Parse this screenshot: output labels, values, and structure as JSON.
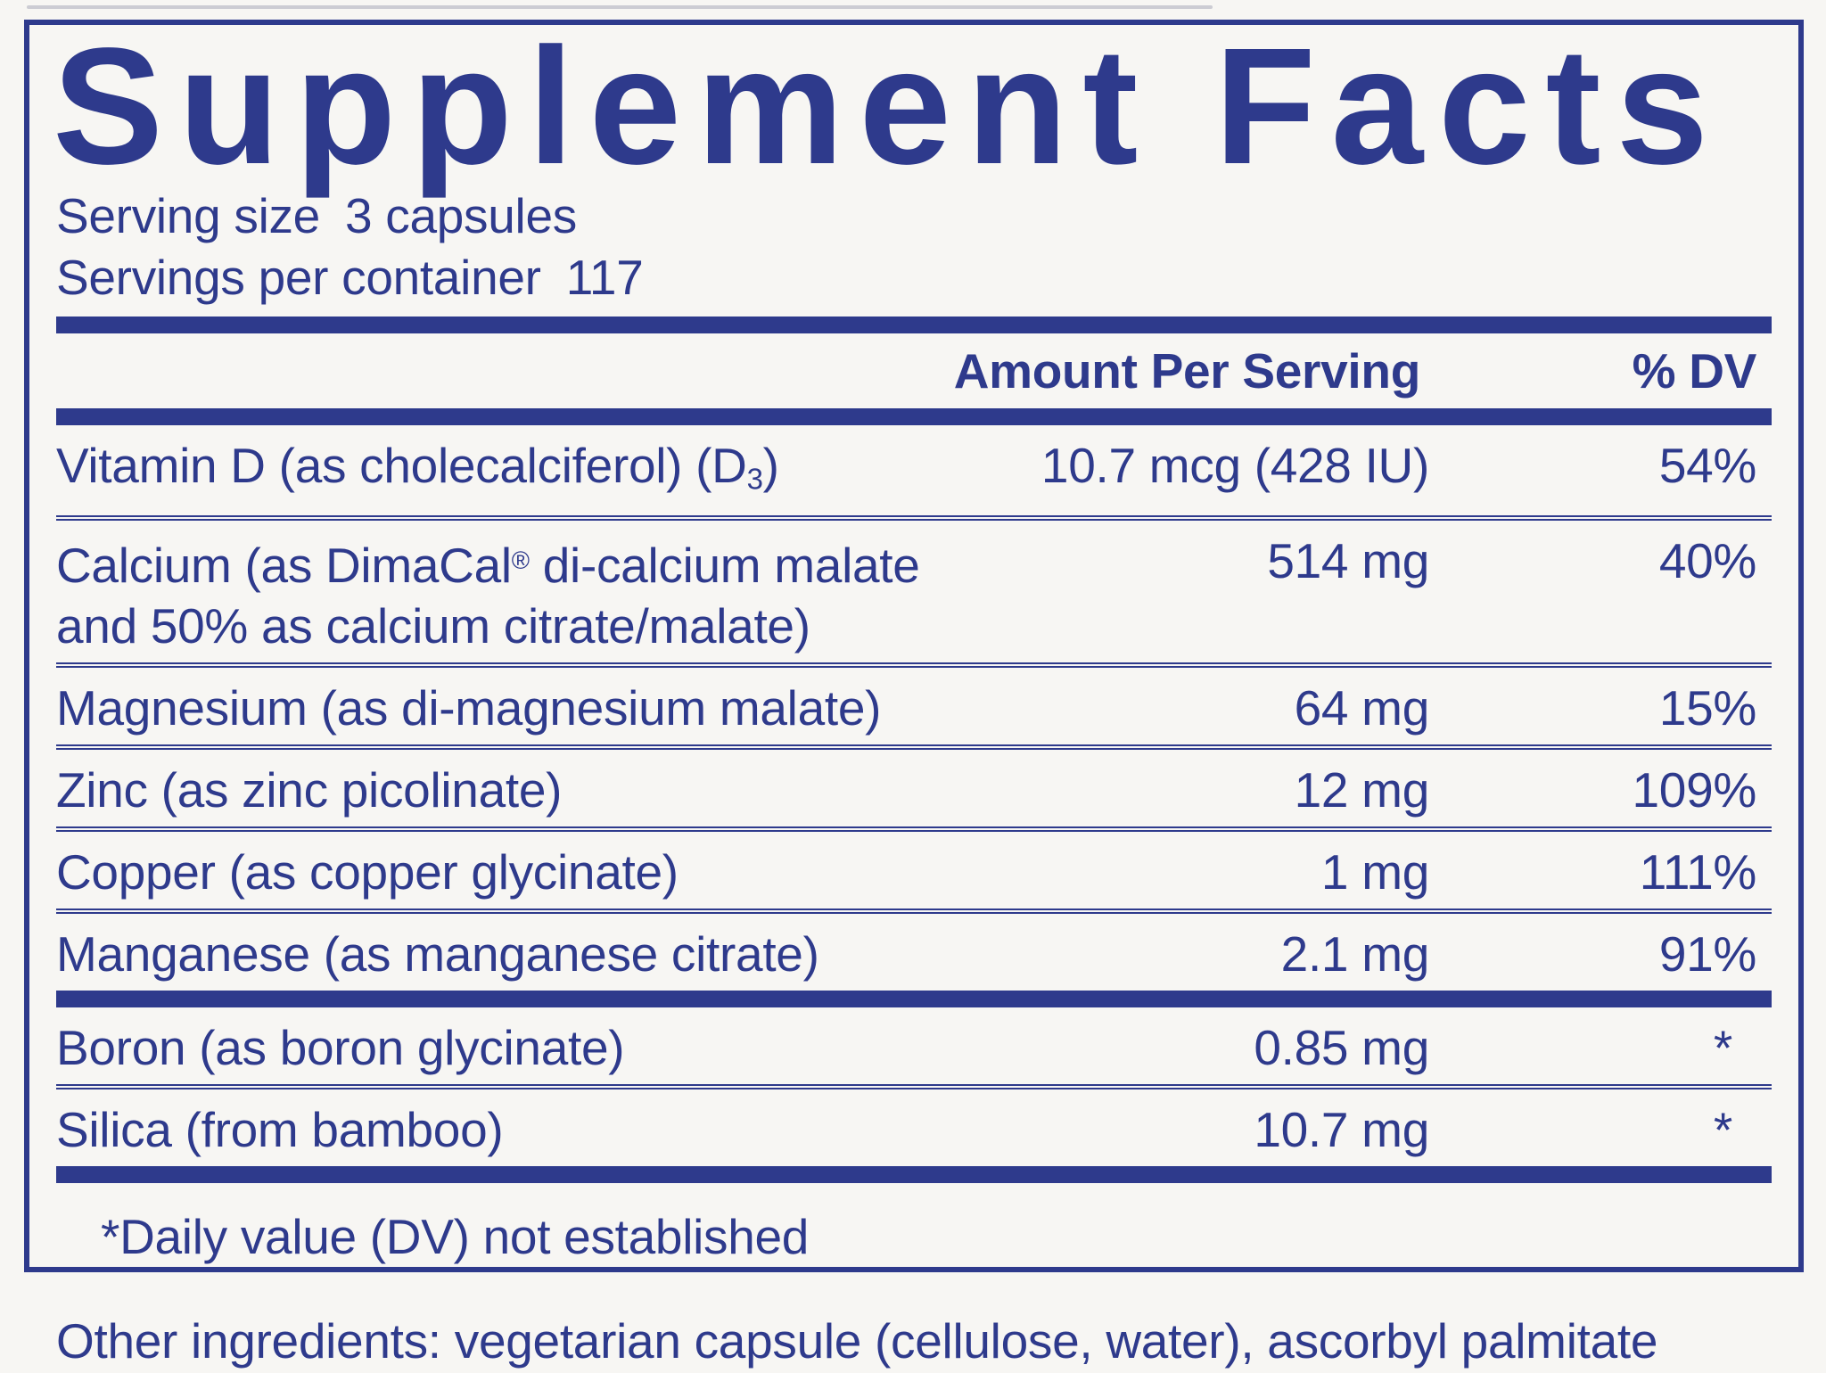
{
  "colors": {
    "navy": "#2e3a8c",
    "background": "#f7f6f3"
  },
  "supplement_facts": {
    "title": "Supplement Facts",
    "serving_lines": [
      {
        "label": "Serving size",
        "value": "3 capsules"
      },
      {
        "label": "Servings per container",
        "value": "117"
      }
    ],
    "columns": {
      "amount": "Amount Per Serving",
      "dv": "% DV"
    },
    "main_rows": [
      {
        "name_parts": [
          {
            "t": "Vitamin D (as cholecalciferol) (D"
          },
          {
            "t": "3",
            "style": "sub"
          },
          {
            "t": ")"
          }
        ],
        "amount": "10.7 mcg (428 IU)",
        "dv": "54%"
      },
      {
        "name_parts": [
          {
            "t": "Calcium (as DimaCal"
          },
          {
            "t": "®",
            "style": "sup"
          },
          {
            "t": " di-calcium malate"
          },
          {
            "style": "br"
          },
          {
            "t": "and 50% as calcium citrate/malate)"
          }
        ],
        "amount": "514 mg",
        "dv": "40%"
      },
      {
        "name_parts": [
          {
            "t": "Magnesium (as di-magnesium malate)"
          }
        ],
        "amount": "64 mg",
        "dv": "15%"
      },
      {
        "name_parts": [
          {
            "t": "Zinc (as zinc picolinate)"
          }
        ],
        "amount": "12 mg",
        "dv": "109%"
      },
      {
        "name_parts": [
          {
            "t": "Copper (as copper glycinate)"
          }
        ],
        "amount": "1 mg",
        "dv": "111%"
      },
      {
        "name_parts": [
          {
            "t": "Manganese (as manganese citrate)"
          }
        ],
        "amount": "2.1 mg",
        "dv": "91%"
      }
    ],
    "secondary_rows": [
      {
        "name_parts": [
          {
            "t": "Boron (as boron glycinate)"
          }
        ],
        "amount": "0.85 mg",
        "dv": "*"
      },
      {
        "name_parts": [
          {
            "t": "Silica (from bamboo)"
          }
        ],
        "amount": "10.7 mg",
        "dv": "*"
      }
    ],
    "footnote": "*Daily value (DV) not established",
    "other_ingredients": "Other ingredients: vegetarian capsule (cellulose, water), ascorbyl palmitate"
  }
}
